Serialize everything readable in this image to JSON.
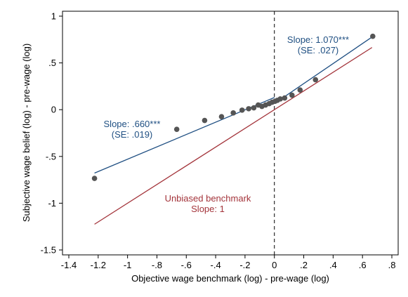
{
  "chart_data": {
    "type": "scatter",
    "xlabel": "Objective wage benchmark (log) - pre-wage (log)",
    "ylabel": "Subjective wage belief (log) - pre-wage (log)",
    "xlim": [
      -1.4,
      0.8
    ],
    "ylim": [
      -1.5,
      1.0
    ],
    "xticks": [
      -1.4,
      -1.2,
      -1.0,
      -0.8,
      -0.6,
      -0.4,
      -0.2,
      0,
      0.2,
      0.4,
      0.6,
      0.8
    ],
    "xtick_labels": [
      "-1.4",
      "-1.2",
      "-1",
      "-.8",
      "-.6",
      "-.4",
      "-.2",
      "0",
      ".2",
      ".4",
      ".6",
      ".8"
    ],
    "yticks": [
      1.0,
      0.5,
      0,
      -0.5,
      -1.0,
      -1.5
    ],
    "ytick_labels": [
      "1",
      ".5",
      "0",
      "-.5",
      "-1",
      "-1.5"
    ],
    "grid": false,
    "vline_x": 0,
    "points": [
      {
        "x": -1.225,
        "y": -0.735
      },
      {
        "x": -0.665,
        "y": -0.21
      },
      {
        "x": -0.475,
        "y": -0.115
      },
      {
        "x": -0.36,
        "y": -0.075
      },
      {
        "x": -0.28,
        "y": -0.035
      },
      {
        "x": -0.22,
        "y": -0.005
      },
      {
        "x": -0.175,
        "y": 0.01
      },
      {
        "x": -0.14,
        "y": 0.02
      },
      {
        "x": -0.11,
        "y": 0.05
      },
      {
        "x": -0.085,
        "y": 0.035
      },
      {
        "x": -0.06,
        "y": 0.05
      },
      {
        "x": -0.035,
        "y": 0.065
      },
      {
        "x": -0.015,
        "y": 0.08
      },
      {
        "x": 0.005,
        "y": 0.09
      },
      {
        "x": 0.02,
        "y": 0.1
      },
      {
        "x": 0.04,
        "y": 0.115
      },
      {
        "x": 0.07,
        "y": 0.125
      },
      {
        "x": 0.12,
        "y": 0.155
      },
      {
        "x": 0.175,
        "y": 0.21
      },
      {
        "x": 0.28,
        "y": 0.32
      },
      {
        "x": 0.67,
        "y": 0.785
      }
    ],
    "fit_left": {
      "slope": 0.66,
      "x": [
        -1.225,
        0
      ],
      "y": [
        -0.678,
        0.13
      ]
    },
    "fit_right": {
      "slope": 1.07,
      "x": [
        0,
        0.67
      ],
      "y": [
        0.065,
        0.782
      ]
    },
    "benchmark_line": {
      "x": [
        -1.225,
        0.665
      ],
      "y": [
        -1.225,
        0.665
      ]
    },
    "annotations": {
      "left_slope": "Slope: .660***",
      "left_se": "(SE: .019)",
      "right_slope": "Slope: 1.070***",
      "right_se": "(SE: .027)",
      "benchmark_title": "Unbiased benchmark",
      "benchmark_slope": "Slope: 1"
    },
    "colors": {
      "fit": "#1f4f82",
      "benchmark": "#a3333a",
      "points": "#555555",
      "axis": "#000000"
    }
  }
}
